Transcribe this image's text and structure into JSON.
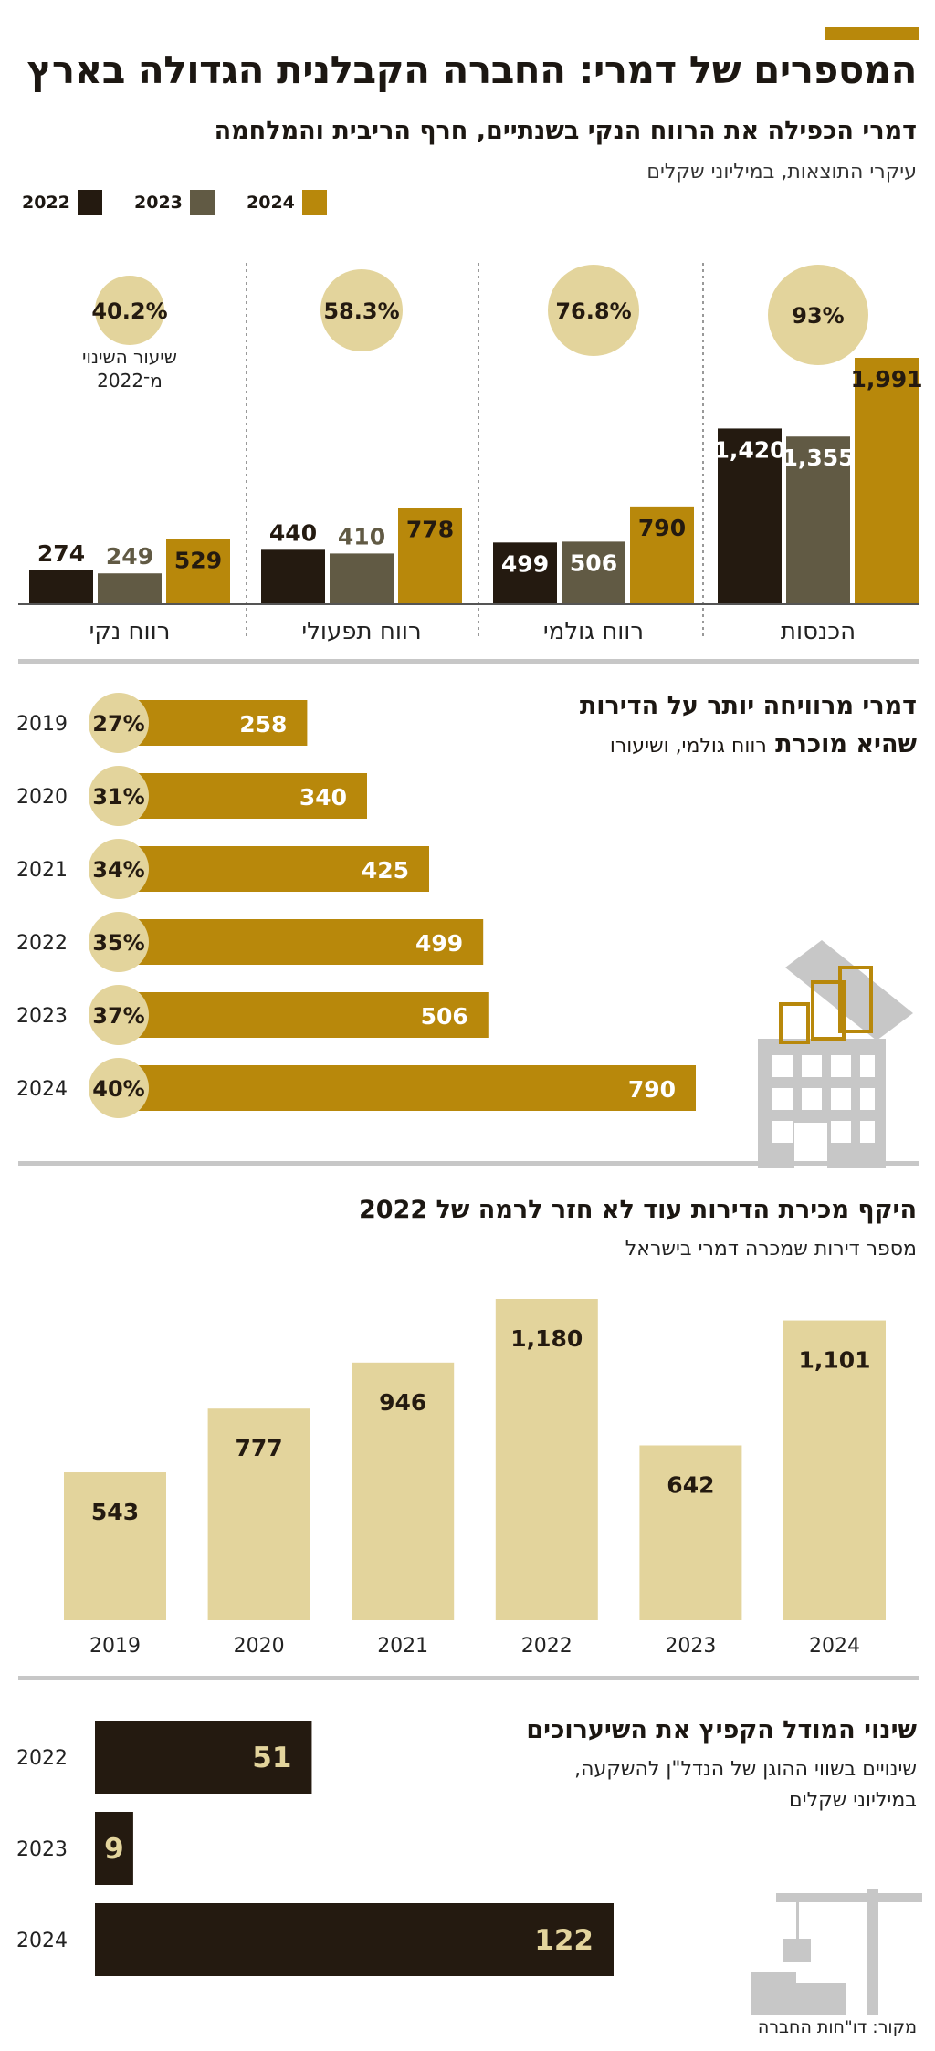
{
  "header": {
    "title": "המספרים של דמרי: החברה הקבלנית הגדולה בארץ",
    "subtitle": "דמרי הכפילה את הרווח הנקי בשנתיים, חרף הריבית והמלחמה",
    "caption": "עיקרי התוצאות, במיליוני שקלים"
  },
  "legend": [
    {
      "label": "2024",
      "color": "#b8880b"
    },
    {
      "label": "2023",
      "color": "#615a44"
    },
    {
      "label": "2022",
      "color": "#241a10"
    }
  ],
  "colors": {
    "y2024": "#b8880b",
    "y2023": "#615a44",
    "y2022": "#241a10",
    "light": "#e3d49c",
    "dark": "#241a10",
    "grey": "#c7c7c7"
  },
  "chart_data": [
    {
      "type": "bar",
      "title": "דמרי הכפילה את הרווח הנקי בשנתיים, חרף הריבית והמלחמה",
      "ylabel": "במיליוני שקלים",
      "categories": [
        "הכנסות",
        "רווח גולמי",
        "רווח תפעולי",
        "רווח נקי"
      ],
      "series": [
        {
          "name": "2022",
          "values": [
            1420,
            499,
            440,
            274
          ]
        },
        {
          "name": "2023",
          "values": [
            1355,
            506,
            410,
            249
          ]
        },
        {
          "name": "2024",
          "values": [
            1991,
            790,
            778,
            529
          ]
        }
      ],
      "value_labels": {
        "2022": [
          "1,420",
          "499",
          "440",
          "274"
        ],
        "2023": [
          "1,355",
          "506",
          "410",
          "249"
        ],
        "2024": [
          "1,991",
          "790",
          "778",
          "529"
        ]
      },
      "change_labels": [
        "93%",
        "76.8%",
        "58.3%",
        "40.2%"
      ],
      "change_note": [
        "שיעור השינוי",
        "מ־2022"
      ]
    },
    {
      "type": "bar",
      "orientation": "horizontal",
      "title": "דמרי מרוויחה יותר על הדירות שהיא מוכרת",
      "title_lines": [
        "דמרי מרוויחה יותר על הדירות",
        "שהיא מוכרת"
      ],
      "caption": "רווח גולמי, ושיעורו",
      "categories": [
        "2019",
        "2020",
        "2021",
        "2022",
        "2023",
        "2024"
      ],
      "values": [
        258,
        340,
        425,
        499,
        506,
        790
      ],
      "percent_labels": [
        "27%",
        "31%",
        "34%",
        "35%",
        "37%",
        "40%"
      ]
    },
    {
      "type": "bar",
      "title": "היקף מכירת הדירות עוד לא חזר לרמה של 2022",
      "caption": "מספר דירות שמכרה דמרי בישראל",
      "categories": [
        "2019",
        "2020",
        "2021",
        "2022",
        "2023",
        "2024"
      ],
      "values": [
        543,
        777,
        946,
        1180,
        642,
        1101
      ],
      "value_labels": [
        "543",
        "777",
        "946",
        "1,180",
        "642",
        "1,101"
      ]
    },
    {
      "type": "bar",
      "orientation": "horizontal",
      "title": "שינוי המודל הקפיץ את השיערוכים",
      "caption_lines": [
        "שינויים בשווי ההוגן של הנדל\"ן להשקעה,",
        "במיליוני שקלים"
      ],
      "categories": [
        "2022",
        "2023",
        "2024"
      ],
      "values": [
        51,
        9,
        122
      ]
    }
  ],
  "footer": {
    "source": "מקור: דו\"חות החברה"
  }
}
